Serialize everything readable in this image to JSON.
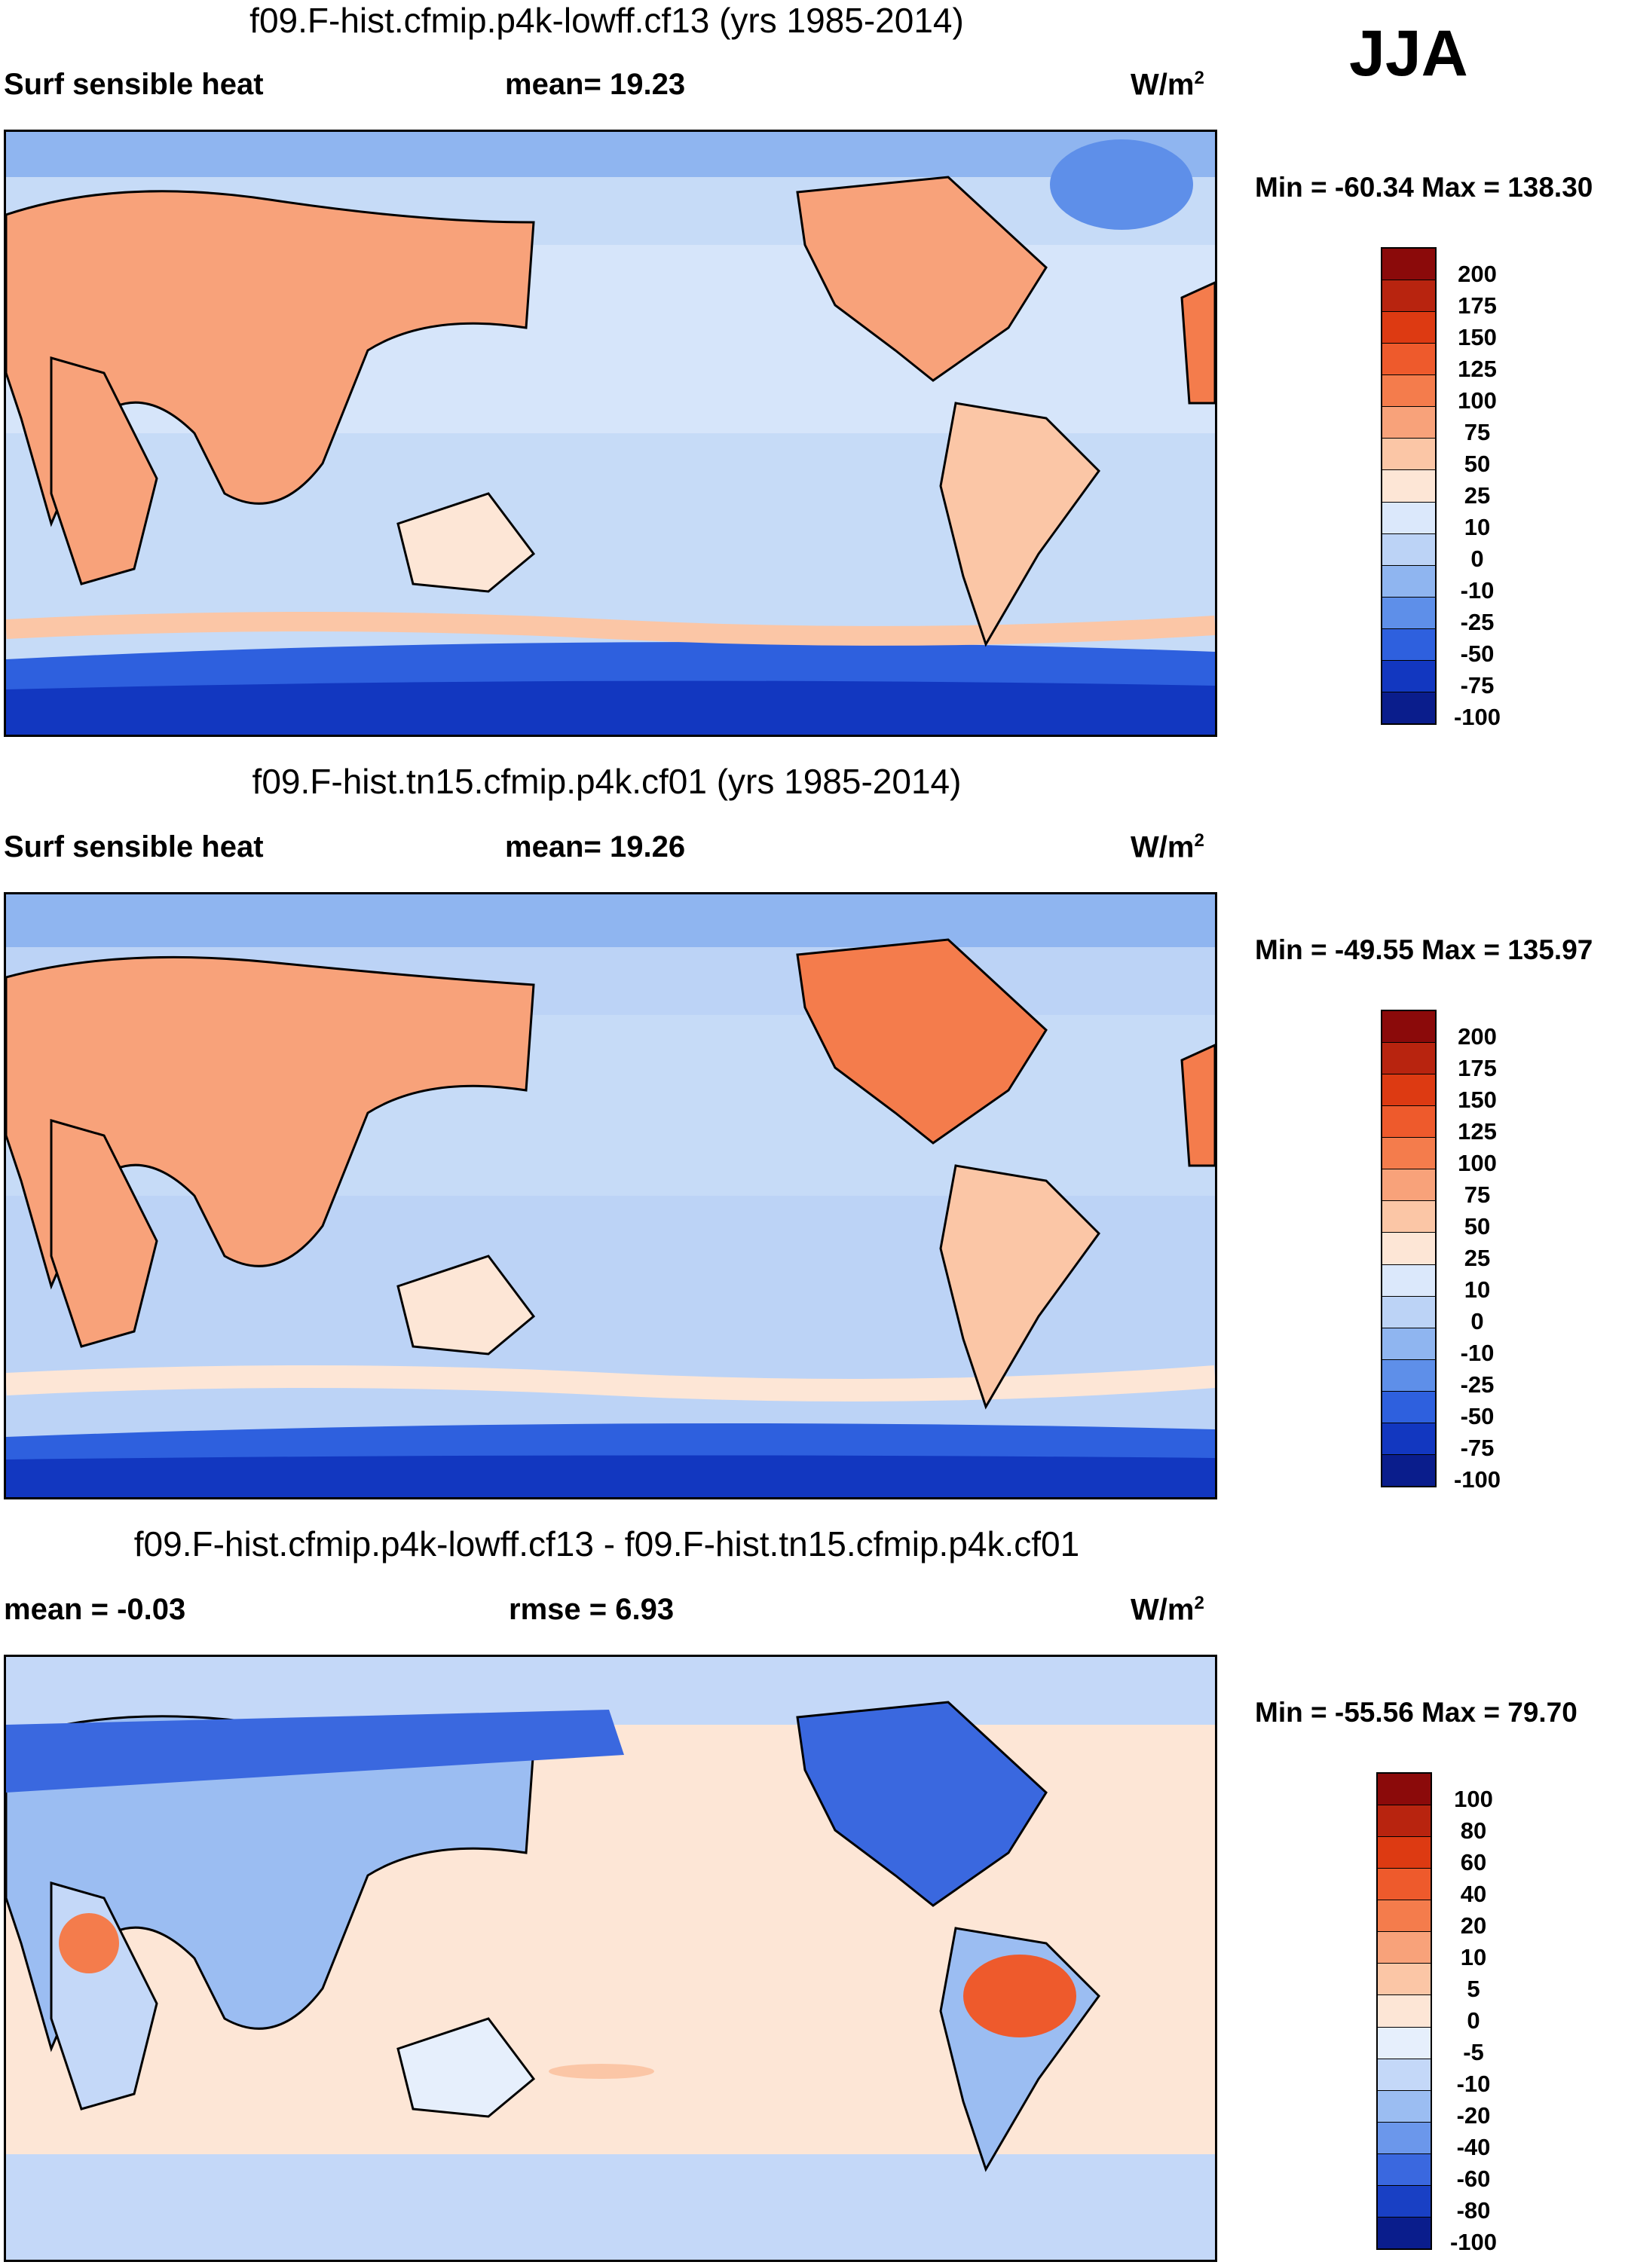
{
  "season": "JJA",
  "panels": [
    {
      "title": "f09.F-hist.cfmip.p4k-lowff.cf13 (yrs 1985-2014)",
      "left_label": "Surf sensible heat",
      "stat_label": "mean=  19.23",
      "units_base": "W/m",
      "units_exp": "2",
      "minmax": "Min = -60.34 Max = 138.30",
      "levels": [
        "200",
        "175",
        "150",
        "125",
        "100",
        "75",
        "50",
        "25",
        "10",
        "0",
        "-10",
        "-25",
        "-50",
        "-75",
        "-100"
      ],
      "colors": [
        "#8b0a0a",
        "#b8240f",
        "#dd3a12",
        "#ee5a2c",
        "#f47c4c",
        "#f8a27a",
        "#fbc6a6",
        "#fde6d6",
        "#dbe8fb",
        "#bcd3f6",
        "#8fb5f0",
        "#5e8fe9",
        "#2e60de",
        "#1237c0",
        "#0a1d8c"
      ]
    },
    {
      "title": "f09.F-hist.tn15.cfmip.p4k.cf01 (yrs 1985-2014)",
      "left_label": "Surf sensible heat",
      "stat_label": "mean=  19.26",
      "units_base": "W/m",
      "units_exp": "2",
      "minmax": "Min = -49.55 Max = 135.97",
      "levels": [
        "200",
        "175",
        "150",
        "125",
        "100",
        "75",
        "50",
        "25",
        "10",
        "0",
        "-10",
        "-25",
        "-50",
        "-75",
        "-100"
      ],
      "colors": [
        "#8b0a0a",
        "#b8240f",
        "#dd3a12",
        "#ee5a2c",
        "#f47c4c",
        "#f8a27a",
        "#fbc6a6",
        "#fde6d6",
        "#dbe8fb",
        "#bcd3f6",
        "#8fb5f0",
        "#5e8fe9",
        "#2e60de",
        "#1237c0",
        "#0a1d8c"
      ]
    },
    {
      "title": "f09.F-hist.cfmip.p4k-lowff.cf13 - f09.F-hist.tn15.cfmip.p4k.cf01",
      "left_label": "mean =  -0.03",
      "stat_label": "rmse =    6.93",
      "units_base": "W/m",
      "units_exp": "2",
      "minmax": "Min = -55.56 Max =  79.70",
      "levels": [
        "100",
        "80",
        "60",
        "40",
        "20",
        "10",
        "5",
        "0",
        "-5",
        "-10",
        "-20",
        "-40",
        "-60",
        "-80",
        "-100"
      ],
      "colors": [
        "#8b0a0a",
        "#b8240f",
        "#dd3a12",
        "#ee5a2c",
        "#f47c4c",
        "#f8a27a",
        "#fbc6a6",
        "#fde6d6",
        "#e6effc",
        "#c4d8f8",
        "#9bbdf2",
        "#6b97eb",
        "#3a68df",
        "#1940c4",
        "#0a1d8c"
      ]
    }
  ]
}
